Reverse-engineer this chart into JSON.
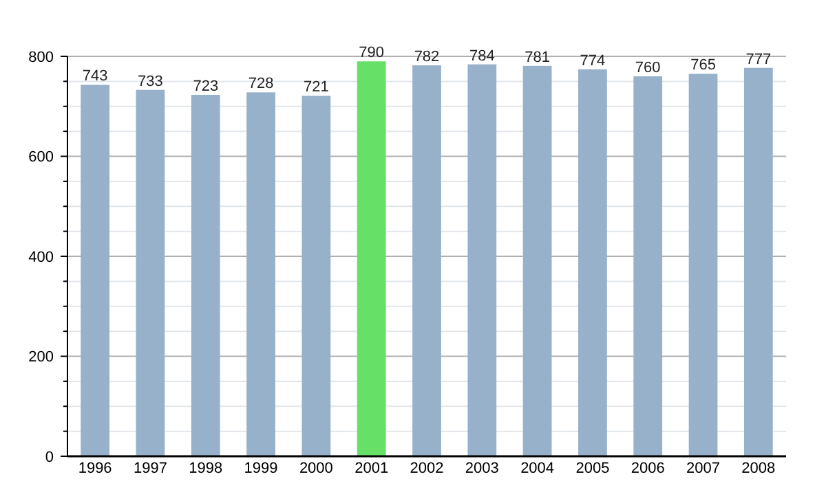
{
  "chart_data": {
    "type": "bar",
    "categories": [
      "1996",
      "1997",
      "1998",
      "1999",
      "2000",
      "2001",
      "2002",
      "2003",
      "2004",
      "2005",
      "2006",
      "2007",
      "2008"
    ],
    "values": [
      743,
      733,
      723,
      728,
      721,
      790,
      782,
      784,
      781,
      774,
      760,
      765,
      777
    ],
    "colors": [
      "#97b1cb",
      "#97b1cb",
      "#97b1cb",
      "#97b1cb",
      "#97b1cb",
      "#66e066",
      "#97b1cb",
      "#97b1cb",
      "#97b1cb",
      "#97b1cb",
      "#97b1cb",
      "#97b1cb",
      "#97b1cb"
    ],
    "ylim": [
      0,
      800
    ],
    "yticks": [
      0,
      {
        "value": 50,
        "label": null
      },
      {
        "value": 100,
        "label": null
      },
      {
        "value": 150,
        "label": null
      },
      200,
      {
        "value": 250,
        "label": null
      },
      {
        "value": 300,
        "label": null
      },
      {
        "value": 350,
        "label": null
      },
      400,
      {
        "value": 450,
        "label": null
      },
      {
        "value": 500,
        "label": null
      },
      {
        "value": 550,
        "label": null
      },
      600,
      {
        "value": 650,
        "label": null
      },
      {
        "value": 700,
        "label": null
      },
      {
        "value": 750,
        "label": null
      },
      800
    ],
    "grid": "y",
    "data_labels": true
  }
}
